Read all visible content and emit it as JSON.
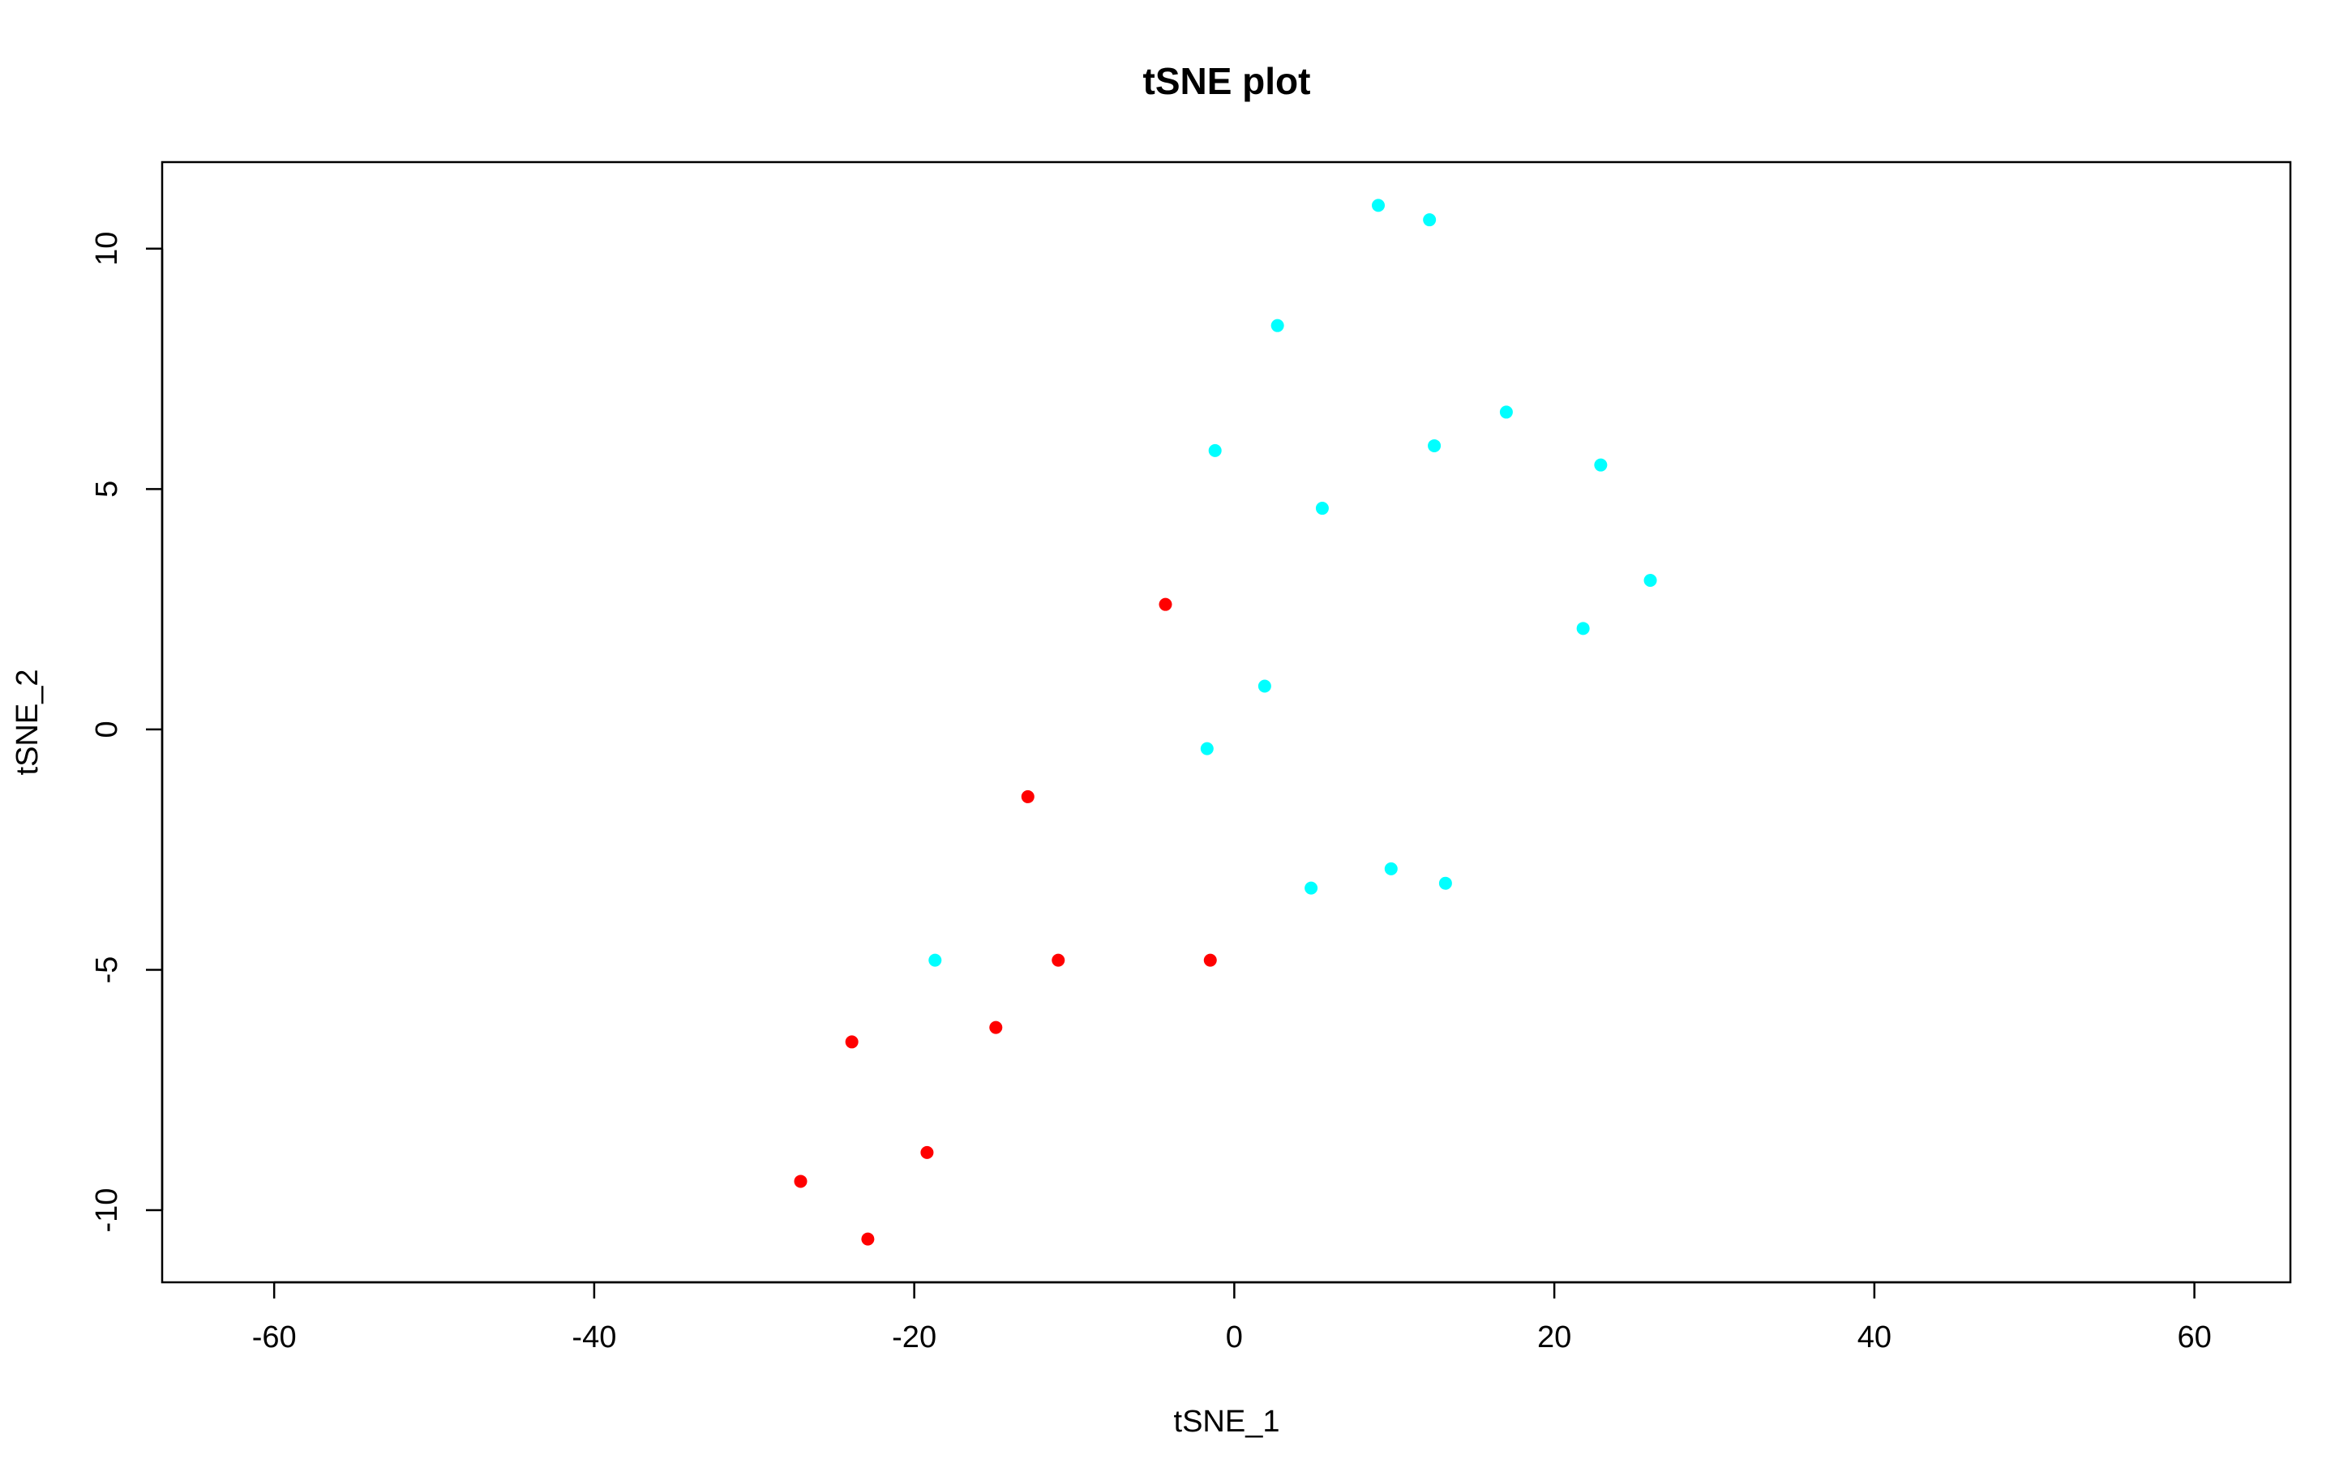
{
  "chart_data": {
    "type": "scatter",
    "title": "tSNE plot",
    "xlabel": "tSNE_1",
    "ylabel": "tSNE_2",
    "xlim": [
      -67,
      66
    ],
    "ylim": [
      -11.5,
      11.8
    ],
    "x_ticks": [
      -60,
      -40,
      -20,
      0,
      20,
      40,
      60
    ],
    "x_tick_labels": [
      "-60",
      "-40",
      "-20",
      "0",
      "20",
      "40",
      "60"
    ],
    "y_ticks": [
      -10,
      -5,
      0,
      5,
      10
    ],
    "y_tick_labels": [
      "-10",
      "-5",
      "0",
      "5",
      "10"
    ],
    "grid": false,
    "legend": "none",
    "series": [
      {
        "color": "#00FFFF",
        "x": [
          9.0,
          12.2,
          2.7,
          17.0,
          -1.2,
          12.5,
          22.9,
          5.5,
          26.0,
          21.8,
          1.9,
          -1.7,
          9.8,
          4.8,
          13.2,
          -18.7
        ],
        "y": [
          10.9,
          10.6,
          8.4,
          6.6,
          5.8,
          5.9,
          5.5,
          4.6,
          3.1,
          2.1,
          0.9,
          -0.4,
          -2.9,
          -3.3,
          -3.2,
          -4.8
        ]
      },
      {
        "color": "#FF0000",
        "x": [
          -4.3,
          -12.9,
          -11.0,
          -1.5,
          -23.9,
          -14.9,
          -19.2,
          -27.1,
          -22.9
        ],
        "y": [
          2.6,
          -1.4,
          -4.8,
          -4.8,
          -6.5,
          -6.2,
          -8.8,
          -9.4,
          -10.6
        ]
      }
    ]
  }
}
